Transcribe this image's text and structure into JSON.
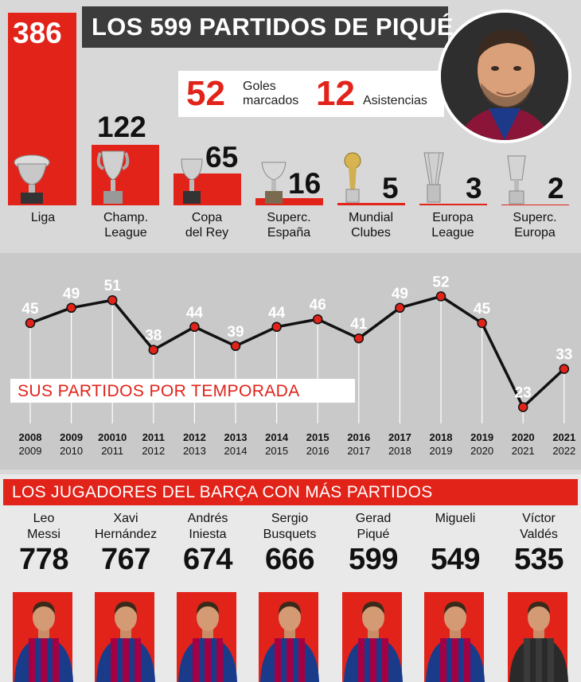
{
  "title": "LOS 599 PARTIDOS DE PIQUÉ",
  "stats": {
    "goals_value": "52",
    "goals_label_1": "Goles",
    "goals_label_2": "marcados",
    "assists_value": "12",
    "assists_label": "Asistencias"
  },
  "competitions": [
    {
      "name_1": "Liga",
      "name_2": "",
      "value": 386
    },
    {
      "name_1": "Champ.",
      "name_2": "League",
      "value": 122
    },
    {
      "name_1": "Copa",
      "name_2": "del Rey",
      "value": 65
    },
    {
      "name_1": "Superc.",
      "name_2": "España",
      "value": 16
    },
    {
      "name_1": "Mundial",
      "name_2": "Clubes",
      "value": 5
    },
    {
      "name_1": "Europa",
      "name_2": "League",
      "value": 3
    },
    {
      "name_1": "Superc.",
      "name_2": "Europa",
      "value": 2
    }
  ],
  "chart_data": {
    "type": "line",
    "title": "SUS PARTIDOS POR TEMPORADA",
    "x_top": [
      "2008",
      "2009",
      "20010",
      "2011",
      "2012",
      "2013",
      "2014",
      "2015",
      "2016",
      "2017",
      "2018",
      "2019",
      "2020",
      "2021"
    ],
    "x_bottom": [
      "2009",
      "2010",
      "2011",
      "2012",
      "2013",
      "2014",
      "2015",
      "2016",
      "2017",
      "2018",
      "2019",
      "2020",
      "2021",
      "2022"
    ],
    "values": [
      45,
      49,
      51,
      38,
      44,
      39,
      44,
      46,
      41,
      49,
      52,
      45,
      23,
      33
    ],
    "ylim": [
      20,
      55
    ],
    "grid": "vertical",
    "line_color": "#111111",
    "marker_color": "#e2231a"
  },
  "players_title": "LOS JUGADORES DEL BARÇA CON MÁS PARTIDOS",
  "players": [
    {
      "first": "Leo",
      "last": "Messi",
      "value": "778"
    },
    {
      "first": "Xavi",
      "last": "Hernández",
      "value": "767"
    },
    {
      "first": "Andrés",
      "last": "Iniesta",
      "value": "674"
    },
    {
      "first": "Sergio",
      "last": "Busquets",
      "value": "666"
    },
    {
      "first": "Gerad",
      "last": "Piqué",
      "value": "599"
    },
    {
      "first": "",
      "last": "Migueli",
      "value": "549"
    },
    {
      "first": "Víctor",
      "last": "Valdés",
      "value": "535"
    }
  ],
  "colors": {
    "accent": "#e2231a",
    "dark": "#3c3c3c",
    "panel": "#d8d8d8",
    "chart_panel": "#c9c9c9"
  }
}
